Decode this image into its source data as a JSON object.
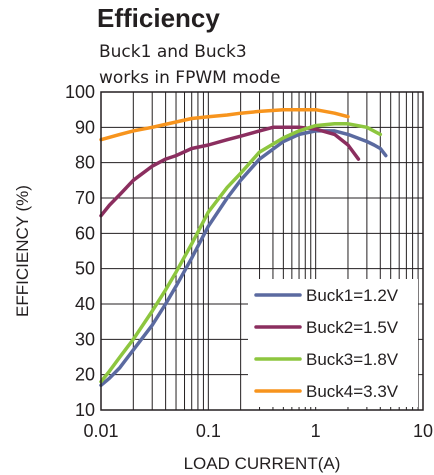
{
  "chart_data": {
    "type": "line",
    "title": "Efficiency",
    "subtitle_lines": [
      "Buck1 and  Buck3",
      "works in FPWM mode"
    ],
    "xlabel": "LOAD CURRENT(A)",
    "ylabel": "EFFICIENCY (%)",
    "x_scale": "log",
    "xlim": [
      0.01,
      10
    ],
    "ylim": [
      10,
      100
    ],
    "x_ticks": [
      {
        "value": 0.01,
        "label": "0.01"
      },
      {
        "value": 0.1,
        "label": "0.1"
      },
      {
        "value": 1,
        "label": "1"
      },
      {
        "value": 10,
        "label": "10"
      }
    ],
    "y_ticks": [
      10,
      20,
      30,
      40,
      50,
      60,
      70,
      80,
      90,
      100
    ],
    "grid": true,
    "legend_position": "bottom-right",
    "series": [
      {
        "name": "Buck1=1.2V",
        "color": "#5b6aa0",
        "x": [
          0.01,
          0.012,
          0.015,
          0.02,
          0.03,
          0.04,
          0.05,
          0.07,
          0.1,
          0.15,
          0.2,
          0.3,
          0.5,
          0.7,
          1.0,
          1.5,
          2.0,
          3.0,
          3.5,
          4.0,
          4.5
        ],
        "y": [
          17,
          19,
          22,
          27,
          34,
          40,
          45,
          53,
          62,
          70,
          75,
          81,
          86,
          88,
          89,
          89,
          88,
          86,
          85,
          84,
          82
        ]
      },
      {
        "name": "Buck2=1.5V",
        "color": "#8b2e5f",
        "x": [
          0.01,
          0.012,
          0.015,
          0.02,
          0.03,
          0.04,
          0.05,
          0.07,
          0.1,
          0.15,
          0.2,
          0.3,
          0.4,
          0.5,
          0.7,
          1.0,
          1.5,
          2.0,
          2.5
        ],
        "y": [
          65,
          68,
          71,
          75,
          79,
          81,
          82,
          84,
          85,
          86.5,
          87.5,
          89,
          90,
          90,
          90,
          89.5,
          88,
          85,
          81
        ]
      },
      {
        "name": "Buck3=1.8V",
        "color": "#8dc63f",
        "x": [
          0.01,
          0.012,
          0.015,
          0.02,
          0.03,
          0.04,
          0.05,
          0.07,
          0.1,
          0.15,
          0.2,
          0.3,
          0.5,
          0.7,
          1.0,
          1.5,
          2.0,
          3.0,
          4.0
        ],
        "y": [
          18,
          21,
          25,
          30,
          38,
          44,
          49,
          57,
          66,
          73,
          77,
          83,
          87,
          89,
          90.5,
          91,
          91,
          90,
          88
        ]
      },
      {
        "name": "Buck4=3.3V",
        "color": "#f7941d",
        "x": [
          0.01,
          0.015,
          0.02,
          0.03,
          0.05,
          0.07,
          0.1,
          0.15,
          0.2,
          0.3,
          0.5,
          0.7,
          1.0,
          1.5,
          2.0
        ],
        "y": [
          86.5,
          88,
          89,
          90,
          91.5,
          92.5,
          93,
          93.5,
          94,
          94.5,
          95,
          95,
          95,
          94,
          93
        ]
      }
    ]
  }
}
